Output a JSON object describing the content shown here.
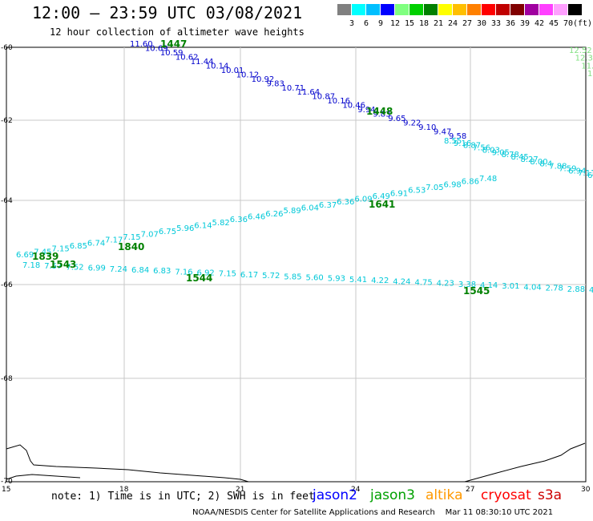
{
  "title": "12:00 – 23:59 UTC 03/08/2021",
  "subtitle": "12 hour collection of altimeter wave heights",
  "color_scale": {
    "labels": [
      "3",
      "6",
      "9",
      "12",
      "15",
      "18",
      "21",
      "24",
      "27",
      "30",
      "33",
      "36",
      "39",
      "42",
      "45",
      "70",
      "(ft)"
    ],
    "colors": [
      "#808080",
      "#00ffff",
      "#00bfff",
      "#0000ff",
      "#7fff7f",
      "#00d000",
      "#008000",
      "#ffff00",
      "#ffbf00",
      "#ff8000",
      "#ff0000",
      "#c00000",
      "#800000",
      "#a000a0",
      "#ff40ff",
      "#ffa0ff",
      "#000000"
    ]
  },
  "axes": {
    "lat_labels": [
      "-60",
      "-62",
      "-64",
      "-66",
      "-68",
      "-70"
    ],
    "lon_labels": [
      "15",
      "18",
      "21",
      "24",
      "27",
      "30"
    ]
  },
  "tracks": [
    {
      "sat": "jason2",
      "color": "#0000cc",
      "values": [
        "11.60",
        "10.69",
        "10.59",
        "10.62",
        "11.44",
        "10.14",
        "10.01",
        "10.12",
        "10.92",
        "9.83",
        "10.71",
        "11.64",
        "10.87",
        "10.16",
        "10.46",
        "9.94",
        "9.83",
        "9.65",
        "9.22",
        "9.10",
        "9.47",
        "9.58"
      ]
    },
    {
      "sat": "s3a-upper",
      "color": "#00c8d8",
      "values": [
        "8.55",
        "9.16",
        "8.87",
        "7.56",
        "8.03",
        "9.05",
        "8.78",
        "8.45",
        "8.27",
        "8.00",
        "8.4",
        "7.88",
        "7.59",
        "6.94",
        "7.11",
        "6.6"
      ]
    },
    {
      "sat": "s3a-diagonal",
      "color": "#00c8d8",
      "values": [
        "6.69",
        "7.45",
        "7.15",
        "6.85",
        "6.74",
        "7.17",
        "7.15",
        "7.07",
        "6.75",
        "5.96",
        "6.14",
        "5.82",
        "6.36",
        "6.46",
        "6.26",
        "5.89",
        "6.04",
        "6.37",
        "6.36",
        "6.09",
        "6.49",
        "6.91",
        "6.53",
        "7.05",
        "6.98",
        "6.86",
        "7.48"
      ]
    },
    {
      "sat": "s3a-lower",
      "color": "#00c8d8",
      "values": [
        "7.18",
        "7.57",
        "7.52",
        "6.99",
        "7.24",
        "6.84",
        "6.83",
        "7.16",
        "6.92",
        "7.15",
        "6.17",
        "5.72",
        "5.85",
        "5.60",
        "5.93",
        "5.41",
        "4.22",
        "4.24",
        "4.75",
        "4.23",
        "3.38",
        "4.14",
        "3.01",
        "4.04",
        "2.78",
        "2.88",
        "4.01"
      ]
    },
    {
      "sat": "right-edge",
      "color": "#80e080",
      "values": [
        "12.52",
        "12.3",
        "11.7",
        "11"
      ]
    }
  ],
  "pass_ids": [
    "1447",
    "1448",
    "1641",
    "1840",
    "1839",
    "1543",
    "1544",
    "1545"
  ],
  "footer": {
    "note": "note: 1) Time is in UTC; 2) SWH is in feet",
    "satellites": [
      {
        "name": "jason2",
        "color": "#0000ff"
      },
      {
        "name": "jason3",
        "color": "#00a000"
      },
      {
        "name": "altika",
        "color": "#ff9900"
      },
      {
        "name": "cryosat",
        "color": "#ff0000"
      },
      {
        "name": "s3a",
        "color": "#cc0000"
      }
    ],
    "credit": "NOAA/NESDIS Center for Satellite Applications and Research    Mar 11 08:30:10 UTC 2021"
  }
}
